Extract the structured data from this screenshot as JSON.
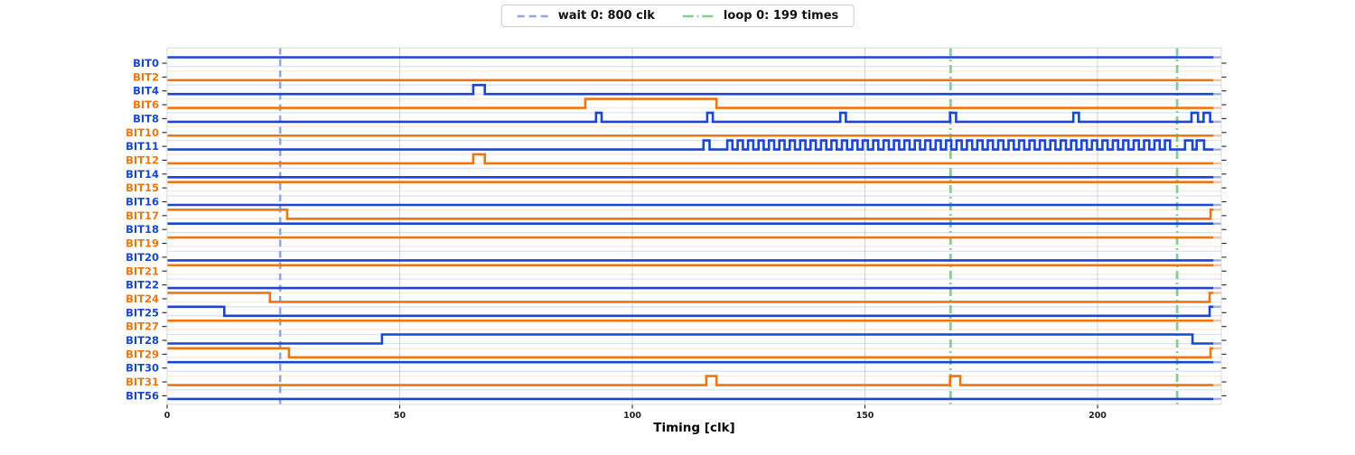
{
  "legend": {
    "items": [
      {
        "label": "wait 0: 800 clk",
        "color": "#90a7e7",
        "style": "dashed"
      },
      {
        "label": "loop 0: 199 times",
        "color": "#7fd092",
        "style": "dashdot"
      }
    ]
  },
  "axis": {
    "xlabel": "Timing [clk]"
  },
  "colors": {
    "blue": "#1947d1",
    "orange": "#ee7612",
    "blue_faint": "rgba(25,71,209,0.16)",
    "orange_faint": "rgba(238,118,18,0.16)",
    "vgrid": "rgba(120,120,120,0.35)",
    "tick": "#222222",
    "wait_line": "#90a7e7",
    "loop_line": "#7fd092",
    "spine": "#d8d8d8"
  },
  "chart_data": {
    "type": "digital-timing",
    "xlabel": "Timing [clk]",
    "x_ticks": [
      0,
      50,
      100,
      150,
      200
    ],
    "x_range": [
      0,
      226.6
    ],
    "fade_from": 224.9,
    "markers": {
      "wait": {
        "label": "wait 0: 800 clk",
        "clk": 24.3
      },
      "loop": {
        "label": "loop 0: 199 times",
        "clks": [
          168.4,
          217.1
        ]
      }
    },
    "signals": [
      {
        "name": "BIT0",
        "color": "blue",
        "initial": 1,
        "edges": []
      },
      {
        "name": "BIT2",
        "color": "orange",
        "initial": 0,
        "edges": []
      },
      {
        "name": "BIT4",
        "color": "blue",
        "initial": 0,
        "edges": [
          [
            65.8,
            1
          ],
          [
            68.3,
            0
          ]
        ]
      },
      {
        "name": "BIT6",
        "color": "orange",
        "initial": 0,
        "edges": [
          [
            89.9,
            1
          ],
          [
            118.1,
            0
          ]
        ]
      },
      {
        "name": "BIT8",
        "color": "blue",
        "initial": 0,
        "edges": [
          [
            92.2,
            1
          ],
          [
            93.4,
            0
          ],
          [
            116.1,
            1
          ],
          [
            117.3,
            0
          ],
          [
            144.7,
            1
          ],
          [
            145.9,
            0
          ],
          [
            168.3,
            1
          ],
          [
            169.6,
            0
          ],
          [
            194.8,
            1
          ],
          [
            196,
            0
          ],
          [
            220.2,
            1
          ],
          [
            221.6,
            0
          ],
          [
            222.8,
            1
          ],
          [
            224.2,
            0
          ]
        ]
      },
      {
        "name": "BIT10",
        "color": "orange",
        "initial": 0,
        "edges": []
      },
      {
        "name": "BIT11",
        "color": "blue",
        "initial": 0,
        "edges": [
          [
            115.3,
            1
          ],
          [
            116.6,
            0
          ],
          [
            218.8,
            1
          ],
          [
            220.4,
            0
          ],
          [
            221.3,
            1
          ],
          [
            222.9,
            0
          ]
        ],
        "burst": {
          "start": 120.4,
          "period": 2.24,
          "high_width": 1.12,
          "count": 43
        }
      },
      {
        "name": "BIT12",
        "color": "orange",
        "initial": 0,
        "edges": [
          [
            65.8,
            1
          ],
          [
            68.3,
            0
          ]
        ]
      },
      {
        "name": "BIT14",
        "color": "blue",
        "initial": 0,
        "edges": []
      },
      {
        "name": "BIT15",
        "color": "orange",
        "initial": 1,
        "edges": []
      },
      {
        "name": "BIT16",
        "color": "blue",
        "initial": 0,
        "edges": []
      },
      {
        "name": "BIT17",
        "color": "orange",
        "initial": 1,
        "edges": [
          [
            25.8,
            0
          ],
          [
            224.3,
            1
          ]
        ]
      },
      {
        "name": "BIT18",
        "color": "blue",
        "initial": 1,
        "edges": []
      },
      {
        "name": "BIT19",
        "color": "orange",
        "initial": 1,
        "edges": []
      },
      {
        "name": "BIT20",
        "color": "blue",
        "initial": 0,
        "edges": []
      },
      {
        "name": "BIT21",
        "color": "orange",
        "initial": 1,
        "edges": []
      },
      {
        "name": "BIT22",
        "color": "blue",
        "initial": 0,
        "edges": []
      },
      {
        "name": "BIT24",
        "color": "orange",
        "initial": 1,
        "edges": [
          [
            22.1,
            0
          ],
          [
            224.1,
            1
          ]
        ]
      },
      {
        "name": "BIT25",
        "color": "blue",
        "initial": 1,
        "edges": [
          [
            12.3,
            0
          ],
          [
            224.1,
            1
          ]
        ]
      },
      {
        "name": "BIT27",
        "color": "orange",
        "initial": 1,
        "edges": []
      },
      {
        "name": "BIT28",
        "color": "blue",
        "initial": 0,
        "edges": [
          [
            46.2,
            1
          ],
          [
            220.4,
            0
          ]
        ]
      },
      {
        "name": "BIT29",
        "color": "orange",
        "initial": 1,
        "edges": [
          [
            26.2,
            0
          ],
          [
            224.3,
            1
          ]
        ]
      },
      {
        "name": "BIT30",
        "color": "blue",
        "initial": 1,
        "edges": []
      },
      {
        "name": "BIT31",
        "color": "orange",
        "initial": 0,
        "edges": [
          [
            115.9,
            1
          ],
          [
            118.1,
            0
          ],
          [
            168.3,
            1
          ],
          [
            170.5,
            0
          ]
        ]
      },
      {
        "name": "BIT56",
        "color": "blue",
        "initial": 0,
        "edges": []
      }
    ]
  }
}
